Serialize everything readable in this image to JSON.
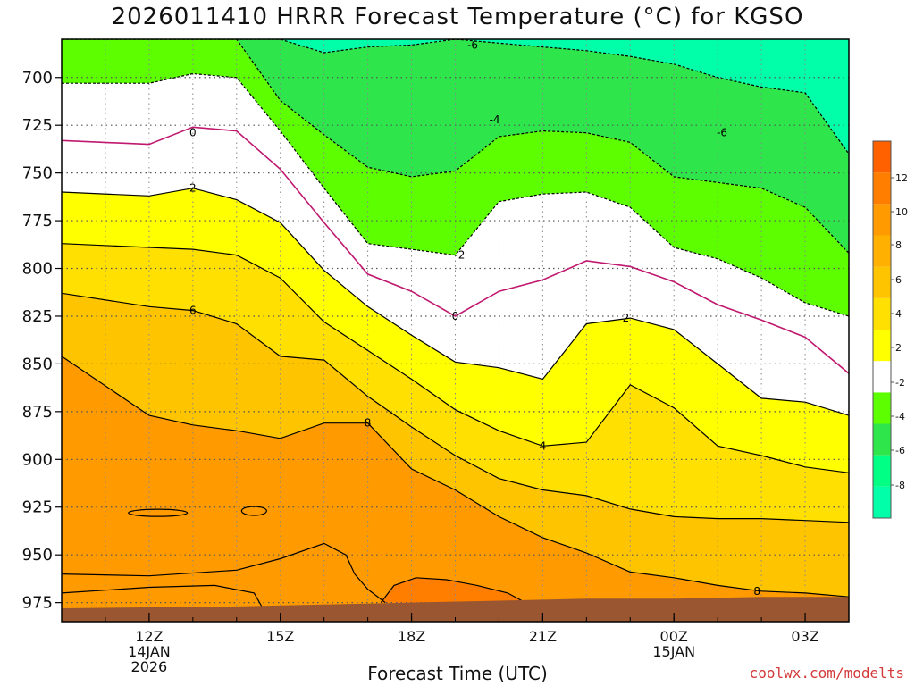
{
  "title": "2026011410 HRRR Forecast Temperature (°C) for KGSO",
  "xlabel": "Forecast Time (UTC)",
  "credit": "coolwx.com/modelts",
  "colors": {
    "terrain": "#9a5630",
    "freezing_line": "#c0186f",
    "accent_orange": "#ff6a00"
  },
  "chart_data": {
    "type": "heatmap",
    "title": "2026011410 HRRR Forecast Temperature (°C) for KGSO",
    "xlabel": "Forecast Time (UTC)",
    "ylabel": "",
    "y_axis": {
      "range_hPa": [
        680,
        985
      ],
      "ticks": [
        700,
        725,
        750,
        775,
        800,
        825,
        850,
        875,
        900,
        925,
        950,
        975
      ]
    },
    "x_axis": {
      "range_hours": [
        10,
        28
      ],
      "ticks": [
        {
          "h": 12,
          "lines": [
            "12Z",
            "14JAN",
            "2026"
          ]
        },
        {
          "h": 15,
          "lines": [
            "15Z"
          ]
        },
        {
          "h": 18,
          "lines": [
            "18Z"
          ]
        },
        {
          "h": 21,
          "lines": [
            "21Z"
          ]
        },
        {
          "h": 24,
          "lines": [
            "00Z",
            "15JAN"
          ]
        },
        {
          "h": 27,
          "lines": [
            "03Z"
          ]
        }
      ]
    },
    "hours": [
      10,
      12,
      13,
      14,
      15,
      16,
      17,
      18,
      19,
      20,
      21,
      22,
      23,
      24,
      25,
      26,
      27,
      28
    ],
    "colorbar_labels": [
      12,
      10,
      8,
      6,
      4,
      2,
      -2,
      -4,
      -6,
      -8
    ],
    "bands": [
      {
        "min": -8,
        "max": -6,
        "color": "#00ffa8"
      },
      {
        "min": -6,
        "max": -4,
        "color": "#2ee64b"
      },
      {
        "min": -4,
        "max": -2,
        "color": "#5dff00"
      },
      {
        "min": -2,
        "max": 0,
        "color": "#ffffff"
      },
      {
        "min": 0,
        "max": 2,
        "color": "#ffffff"
      },
      {
        "min": 2,
        "max": 4,
        "color": "#ffff00"
      },
      {
        "min": 4,
        "max": 6,
        "color": "#ffe000"
      },
      {
        "min": 6,
        "max": 8,
        "color": "#ffc400"
      },
      {
        "min": 8,
        "max": 10,
        "color": "#ff9a00"
      },
      {
        "min": 10,
        "max": 12,
        "color": "#ff7e00"
      }
    ],
    "colorbar": [
      {
        "color": "#00ffa8"
      },
      {
        "color": "#00ff85"
      },
      {
        "color": "#2ee64b"
      },
      {
        "color": "#5dff00"
      },
      {
        "color": "#ffffff"
      },
      {
        "color": "#ffff00"
      },
      {
        "color": "#ffe000"
      },
      {
        "color": "#ffc400"
      },
      {
        "color": "#ffb000"
      },
      {
        "color": "#ff9a00"
      },
      {
        "color": "#ff7e00"
      },
      {
        "color": "#ff6000"
      }
    ],
    "contours": [
      {
        "value": -6,
        "style": "dashed",
        "color": "#000000",
        "label": "-6",
        "y": [
          680,
          680,
          680,
          680,
          680,
          687,
          684,
          683,
          680,
          682,
          684,
          686,
          689,
          693,
          700,
          705,
          708,
          740
        ]
      },
      {
        "value": -4,
        "style": "dashed",
        "color": "#000000",
        "label": "-4",
        "y": [
          680,
          680,
          680,
          680,
          712,
          730,
          747,
          752,
          749,
          731,
          728,
          729,
          734,
          752,
          755,
          758,
          768,
          792
        ]
      },
      {
        "value": -2,
        "style": "dashed",
        "color": "#000000",
        "label": "-2",
        "y": [
          703,
          703,
          698,
          700,
          728,
          758,
          787,
          790,
          793,
          765,
          761,
          760,
          768,
          789,
          795,
          805,
          818,
          825
        ]
      },
      {
        "value": 0,
        "style": "solid",
        "color": "#c0186f",
        "label": "0",
        "y": [
          733,
          735,
          726,
          728,
          748,
          776,
          803,
          812,
          825,
          812,
          806,
          796,
          799,
          807,
          819,
          827,
          836,
          855
        ]
      },
      {
        "value": 2,
        "style": "solid",
        "color": "#000000",
        "label": "2",
        "y": [
          760,
          762,
          758,
          764,
          776,
          801,
          820,
          835,
          849,
          852,
          858,
          829,
          826,
          832,
          850,
          868,
          870,
          877
        ]
      },
      {
        "value": 4,
        "style": "solid",
        "color": "#000000",
        "label": "4",
        "y": [
          787,
          789,
          790,
          793,
          805,
          828,
          843,
          858,
          874,
          885,
          893,
          891,
          861,
          873,
          893,
          898,
          904,
          907
        ]
      },
      {
        "value": 6,
        "style": "solid",
        "color": "#000000",
        "label": "6",
        "y": [
          813,
          820,
          822,
          829,
          846,
          848,
          867,
          883,
          898,
          910,
          916,
          919,
          926,
          930,
          931,
          931,
          932,
          933
        ]
      },
      {
        "value": 8,
        "style": "solid",
        "color": "#000000",
        "label": "8",
        "y": [
          846,
          877,
          882,
          885,
          889,
          881,
          881,
          905,
          916,
          930,
          941,
          949,
          959,
          962,
          966,
          969,
          970,
          972
        ]
      }
    ]
  }
}
